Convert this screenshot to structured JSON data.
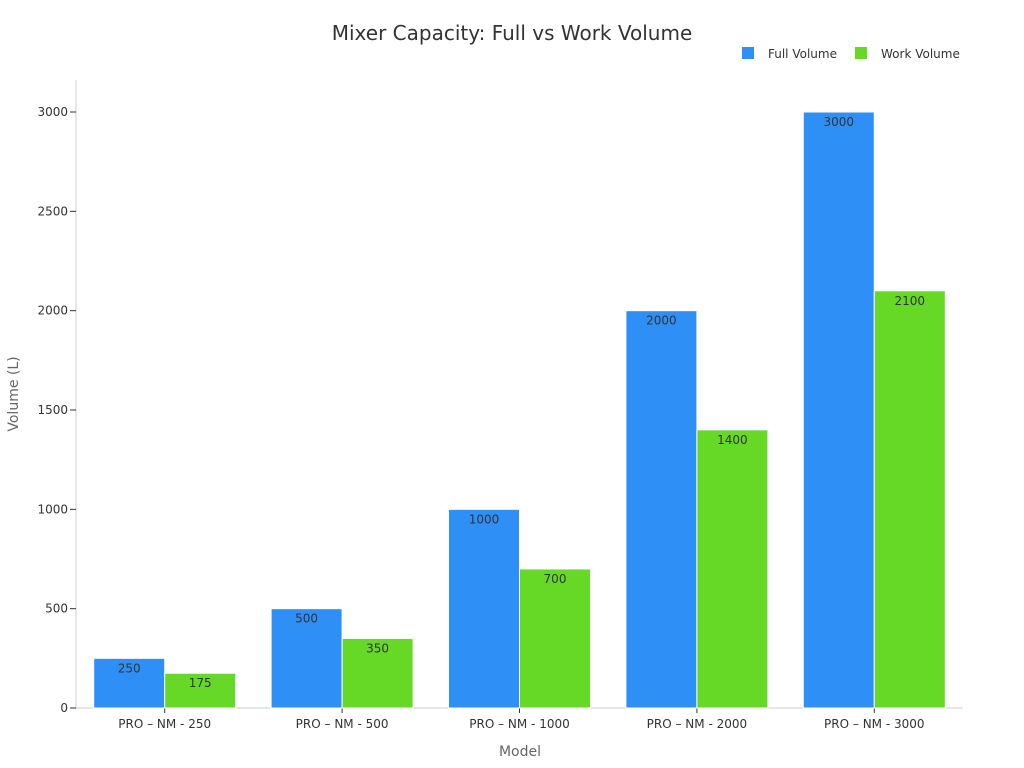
{
  "chart_data": {
    "type": "bar",
    "title": "Mixer Capacity: Full vs Work Volume",
    "xlabel": "Model",
    "ylabel": "Volume (L)",
    "categories": [
      "PRO – NM - 250",
      "PRO – NM - 500",
      "PRO – NM - 1000",
      "PRO – NM - 2000",
      "PRO – NM - 3000"
    ],
    "series": [
      {
        "name": "Full Volume",
        "color": "#2e90f7",
        "values": [
          250,
          500,
          1000,
          2000,
          3000
        ]
      },
      {
        "name": "Work Volume",
        "color": "#66d926",
        "values": [
          175,
          350,
          700,
          1400,
          2100
        ]
      }
    ],
    "ylim": [
      0,
      3000
    ],
    "yticks": [
      0,
      500,
      1000,
      1500,
      2000,
      2500,
      3000
    ],
    "legend_position": "top-right",
    "grid": false
  }
}
